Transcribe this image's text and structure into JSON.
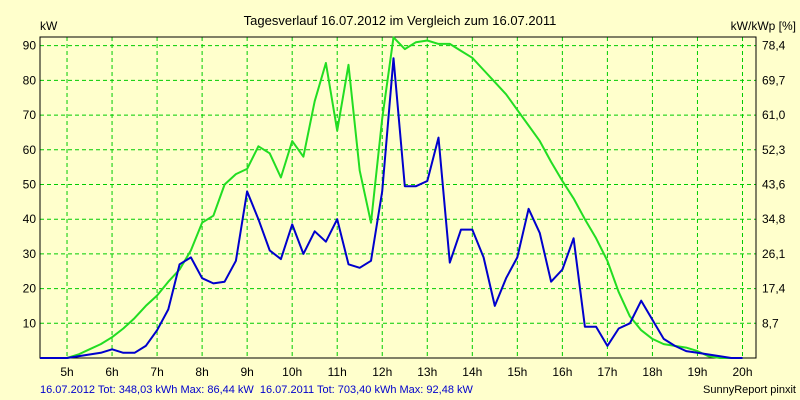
{
  "chart_data": {
    "type": "line",
    "title": "Tagesverlauf 16.07.2012 im Vergleich zum 16.07.2011",
    "ylabel_left": "kW",
    "ylabel_right": "kW/kWp [%]",
    "credit": "SunnyReport pinxit",
    "x_ticks": [
      "5h",
      "6h",
      "7h",
      "8h",
      "9h",
      "10h",
      "11h",
      "12h",
      "13h",
      "14h",
      "15h",
      "16h",
      "17h",
      "18h",
      "19h",
      "20h"
    ],
    "x_tick_values": [
      5,
      6,
      7,
      8,
      9,
      10,
      11,
      12,
      13,
      14,
      15,
      16,
      17,
      18,
      19,
      20
    ],
    "xlim": [
      4.4,
      20.3
    ],
    "ylim": [
      0,
      92.5
    ],
    "y_ticks_left": [
      "10",
      "20",
      "30",
      "40",
      "50",
      "60",
      "70",
      "80",
      "90"
    ],
    "y_tick_values_left": [
      10,
      20,
      30,
      40,
      50,
      60,
      70,
      80,
      90
    ],
    "y_ticks_right": [
      "8,7",
      "17,4",
      "26,1",
      "34,8",
      "43,6",
      "52,3",
      "61,0",
      "69,7",
      "78,4"
    ],
    "grid": true,
    "legend": [
      {
        "label": "16.07.2012 Tot: 348,03 kWh Max: 86,44 kW",
        "color": "#0000cc"
      },
      {
        "label": "16.07.2011 Tot: 703,40 kWh Max: 92,48 kW",
        "color": "#22dd22"
      }
    ],
    "series": [
      {
        "name": "16.07.2012",
        "color": "#0000cc",
        "x": [
          4.4,
          5.0,
          5.25,
          5.5,
          5.75,
          6.0,
          6.25,
          6.5,
          6.75,
          7.0,
          7.25,
          7.5,
          7.75,
          8.0,
          8.25,
          8.5,
          8.75,
          9.0,
          9.25,
          9.5,
          9.75,
          10.0,
          10.25,
          10.5,
          10.75,
          11.0,
          11.25,
          11.5,
          11.75,
          12.0,
          12.25,
          12.5,
          12.75,
          13.0,
          13.25,
          13.5,
          13.75,
          14.0,
          14.25,
          14.5,
          14.75,
          15.0,
          15.25,
          15.5,
          15.75,
          16.0,
          16.25,
          16.5,
          16.75,
          17.0,
          17.25,
          17.5,
          17.75,
          18.0,
          18.25,
          18.5,
          18.75,
          19.0,
          19.25,
          19.5,
          19.75,
          20.0
        ],
        "y": [
          0,
          0,
          0.5,
          1,
          1.5,
          2.5,
          1.5,
          1.5,
          3.5,
          8,
          14,
          27,
          29,
          23,
          21.5,
          22,
          28,
          48,
          40,
          31,
          28.5,
          38.5,
          30,
          36.5,
          33.5,
          40,
          27,
          26,
          28,
          48,
          86.4,
          49.5,
          49.5,
          51,
          63.5,
          27.5,
          37,
          37,
          29,
          15,
          23,
          29,
          43,
          36,
          22,
          25.5,
          34.5,
          9,
          9,
          3.5,
          8.5,
          10,
          16.5,
          11,
          5.5,
          3.5,
          2,
          1.5,
          1,
          0.5,
          0,
          0
        ]
      },
      {
        "name": "16.07.2011",
        "color": "#22dd22",
        "x": [
          4.4,
          4.75,
          5.0,
          5.25,
          5.5,
          5.75,
          6.0,
          6.25,
          6.5,
          6.75,
          7.0,
          7.25,
          7.5,
          7.75,
          8.0,
          8.25,
          8.5,
          8.75,
          9.0,
          9.25,
          9.5,
          9.75,
          10.0,
          10.25,
          10.5,
          10.75,
          11.0,
          11.25,
          11.5,
          11.75,
          12.0,
          12.25,
          12.5,
          12.75,
          13.0,
          13.25,
          13.5,
          13.75,
          14.0,
          14.25,
          14.5,
          14.75,
          15.0,
          15.25,
          15.5,
          15.75,
          16.0,
          16.25,
          16.5,
          16.75,
          17.0,
          17.25,
          17.5,
          17.75,
          18.0,
          18.25,
          18.5,
          18.75,
          19.0,
          19.25,
          19.5,
          19.75,
          20.0
        ],
        "y": [
          0,
          0,
          0,
          1,
          2.5,
          4,
          6,
          8.5,
          11.5,
          15,
          18,
          22,
          25.5,
          31,
          39,
          41,
          50,
          53,
          54.5,
          61,
          59,
          52,
          62.5,
          58,
          74,
          85,
          65.5,
          84.5,
          54,
          39,
          69,
          92.4,
          89,
          91,
          91.5,
          90.5,
          90.5,
          88.5,
          86.5,
          83,
          79.5,
          76,
          71.5,
          67,
          62.5,
          56.5,
          51,
          46,
          40,
          34.5,
          28,
          19,
          12,
          8,
          5.5,
          4,
          3.5,
          3,
          2,
          0.5,
          0,
          0,
          0
        ]
      }
    ]
  }
}
